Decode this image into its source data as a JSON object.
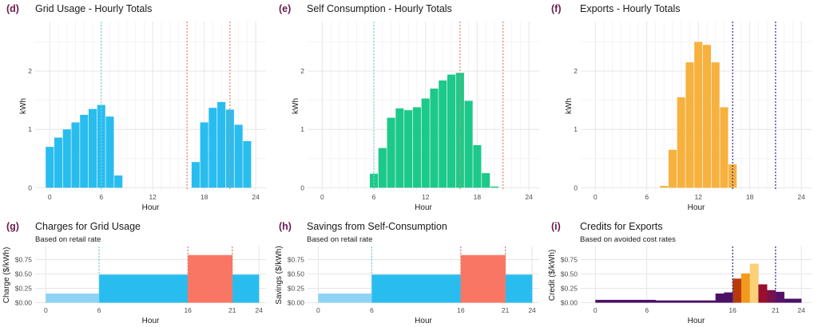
{
  "colors": {
    "grid": "#29bdef",
    "self": "#1dc98a",
    "exports": "#f7b13e",
    "offpeak": "#8dd3f5",
    "standard": "#29bdef",
    "peak": "#fa7664",
    "vline_offpeak": "#7fd1d8",
    "vline_peak": "#e8806e",
    "vline_exports": "#2a2a9a",
    "credit_low": "#4a1166",
    "credit_c1": "#b83a0c",
    "credit_c2": "#f29a1c",
    "credit_c3": "#fbd078",
    "credit_c4": "#9a0f2f",
    "credit_c5": "#7a1048",
    "credit_c6": "#5a1068"
  },
  "chart_data": [
    {
      "id": "d",
      "label": "(d)",
      "type": "bar",
      "title": "Grid Usage - Hourly Totals",
      "xlabel": "Hour",
      "ylabel": "kWh",
      "xlim": [
        -1.7,
        25.2
      ],
      "ylim": [
        -0.05,
        2.85
      ],
      "xticks": [
        0,
        6,
        12,
        18,
        24
      ],
      "yticks": [
        0,
        1,
        2
      ],
      "vlines": [
        {
          "x": 6,
          "color": "vline_offpeak"
        },
        {
          "x": 16,
          "color": "vline_peak"
        },
        {
          "x": 21,
          "color": "vline_peak"
        }
      ],
      "color": "grid",
      "x": [
        0,
        1,
        2,
        3,
        4,
        5,
        6,
        7,
        8,
        9,
        10,
        11,
        12,
        13,
        14,
        15,
        16,
        17,
        18,
        19,
        20,
        21,
        22,
        23,
        24
      ],
      "values": [
        0.7,
        0.86,
        1.0,
        1.12,
        1.25,
        1.35,
        1.42,
        1.22,
        0.21,
        0,
        0,
        0,
        0,
        0,
        0,
        0,
        0,
        0.44,
        1.12,
        1.37,
        1.47,
        1.34,
        1.08,
        0.8,
        0
      ]
    },
    {
      "id": "e",
      "label": "(e)",
      "type": "bar",
      "title": "Self Consumption - Hourly Totals",
      "xlabel": "Hour",
      "ylabel": "kWh",
      "xlim": [
        -1.7,
        25.2
      ],
      "ylim": [
        -0.05,
        2.85
      ],
      "xticks": [
        0,
        6,
        12,
        18,
        24
      ],
      "yticks": [
        0,
        1,
        2
      ],
      "vlines": [
        {
          "x": 6,
          "color": "vline_offpeak"
        },
        {
          "x": 16,
          "color": "vline_peak"
        },
        {
          "x": 21,
          "color": "vline_peak"
        }
      ],
      "color": "self",
      "x": [
        0,
        1,
        2,
        3,
        4,
        5,
        6,
        7,
        8,
        9,
        10,
        11,
        12,
        13,
        14,
        15,
        16,
        17,
        18,
        19,
        20,
        21,
        22,
        23,
        24
      ],
      "values": [
        0,
        0,
        0,
        0,
        0,
        0,
        0.24,
        0.68,
        1.2,
        1.36,
        1.33,
        1.38,
        1.53,
        1.7,
        1.84,
        1.94,
        1.97,
        1.49,
        0.73,
        0.25,
        0.02,
        0,
        0,
        0,
        0
      ]
    },
    {
      "id": "f",
      "label": "(f)",
      "type": "bar",
      "title": "Exports - Hourly Totals",
      "xlabel": "Hour",
      "ylabel": "kWh",
      "xlim": [
        -1.7,
        25.2
      ],
      "ylim": [
        -0.05,
        2.85
      ],
      "xticks": [
        0,
        6,
        12,
        18,
        24
      ],
      "yticks": [
        0,
        1,
        2
      ],
      "vlines": [
        {
          "x": 16,
          "color": "vline_exports"
        },
        {
          "x": 21,
          "color": "vline_exports"
        }
      ],
      "color": "exports",
      "x": [
        0,
        1,
        2,
        3,
        4,
        5,
        6,
        7,
        8,
        9,
        10,
        11,
        12,
        13,
        14,
        15,
        16,
        17,
        18,
        19,
        20,
        21,
        22,
        23,
        24
      ],
      "values": [
        0,
        0,
        0,
        0,
        0,
        0,
        0,
        0,
        0.03,
        0.65,
        1.55,
        2.15,
        2.5,
        2.45,
        2.15,
        1.38,
        0.4,
        0,
        0,
        0,
        0,
        0,
        0,
        0,
        0
      ]
    },
    {
      "id": "g",
      "label": "(g)",
      "type": "step",
      "title": "Charges for Grid Usage",
      "subtitle": "Based on retail rate",
      "xlabel": "Hour",
      "ylabel": "Charge ($/kWh)",
      "xlim": [
        -1.2,
        24.8
      ],
      "ylim": [
        -0.02,
        0.98
      ],
      "xticks": [
        0,
        6,
        16,
        21,
        24
      ],
      "yticks": [
        0,
        0.25,
        0.5,
        0.75
      ],
      "ytick_labels": [
        "$0.00",
        "$0.25",
        "$0.50",
        "$0.75"
      ],
      "vlines": [
        {
          "x": 6,
          "color": "vline_offpeak"
        },
        {
          "x": 16,
          "color": "vline_peak"
        },
        {
          "x": 21,
          "color": "vline_peak"
        }
      ],
      "segments": [
        {
          "x0": 0,
          "x1": 6,
          "value": 0.16,
          "color": "offpeak"
        },
        {
          "x0": 6,
          "x1": 16,
          "value": 0.49,
          "color": "standard"
        },
        {
          "x0": 16,
          "x1": 21,
          "value": 0.83,
          "color": "peak"
        },
        {
          "x0": 21,
          "x1": 24,
          "value": 0.49,
          "color": "standard"
        }
      ]
    },
    {
      "id": "h",
      "label": "(h)",
      "type": "step",
      "title": "Savings from Self-Consumption",
      "subtitle": "Based on retail rate",
      "xlabel": "Hour",
      "ylabel": "Savings ($/kWh)",
      "xlim": [
        -1.2,
        24.8
      ],
      "ylim": [
        -0.02,
        0.98
      ],
      "xticks": [
        0,
        6,
        16,
        21,
        24
      ],
      "yticks": [
        0,
        0.25,
        0.5,
        0.75
      ],
      "ytick_labels": [
        "$0.00",
        "$0.25",
        "$0.50",
        "$0.75"
      ],
      "vlines": [
        {
          "x": 6,
          "color": "vline_offpeak"
        },
        {
          "x": 16,
          "color": "vline_peak"
        },
        {
          "x": 21,
          "color": "vline_peak"
        }
      ],
      "segments": [
        {
          "x0": 0,
          "x1": 6,
          "value": 0.16,
          "color": "offpeak"
        },
        {
          "x0": 6,
          "x1": 16,
          "value": 0.49,
          "color": "standard"
        },
        {
          "x0": 16,
          "x1": 21,
          "value": 0.83,
          "color": "peak"
        },
        {
          "x0": 21,
          "x1": 24,
          "value": 0.49,
          "color": "standard"
        }
      ]
    },
    {
      "id": "i",
      "label": "(i)",
      "type": "step",
      "title": "Credits for Exports",
      "subtitle": "Based on avoided cost rates",
      "xlabel": "Hour",
      "ylabel": "Credit ($/kWh)",
      "xlim": [
        -1.7,
        25.2
      ],
      "ylim": [
        -0.02,
        0.98
      ],
      "xticks": [
        0,
        6,
        16,
        21,
        24
      ],
      "yticks": [
        0,
        0.25,
        0.5,
        0.75
      ],
      "ytick_labels": [
        "$0.00",
        "$0.25",
        "$0.50",
        "$0.75"
      ],
      "vlines": [
        {
          "x": 16,
          "color": "vline_exports"
        },
        {
          "x": 21,
          "color": "vline_exports"
        }
      ],
      "segments": [
        {
          "x0": 0,
          "x1": 7,
          "value": 0.05,
          "color": "credit_low"
        },
        {
          "x0": 7,
          "x1": 14,
          "value": 0.04,
          "color": "credit_low"
        },
        {
          "x0": 14,
          "x1": 15,
          "value": 0.16,
          "color": "credit_low"
        },
        {
          "x0": 15,
          "x1": 16,
          "value": 0.18,
          "color": "credit_low"
        },
        {
          "x0": 16,
          "x1": 17,
          "value": 0.42,
          "color": "credit_c1"
        },
        {
          "x0": 17,
          "x1": 18,
          "value": 0.51,
          "color": "credit_c2"
        },
        {
          "x0": 18,
          "x1": 19,
          "value": 0.68,
          "color": "credit_c3"
        },
        {
          "x0": 19,
          "x1": 20,
          "value": 0.32,
          "color": "credit_c4"
        },
        {
          "x0": 20,
          "x1": 21,
          "value": 0.22,
          "color": "credit_c5"
        },
        {
          "x0": 21,
          "x1": 22,
          "value": 0.19,
          "color": "credit_c6"
        },
        {
          "x0": 22,
          "x1": 24,
          "value": 0.07,
          "color": "credit_low"
        }
      ]
    }
  ]
}
